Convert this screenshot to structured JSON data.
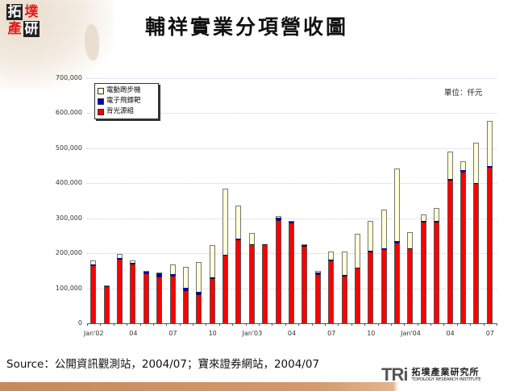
{
  "header": {
    "logo_chars": [
      "拓",
      "墣",
      "產",
      "研"
    ],
    "title": "輔祥實業分項營收圖"
  },
  "chart_data": {
    "type": "bar",
    "stacked": true,
    "title": "輔祥實業分項營收圖",
    "unit_label": "單位：仟元",
    "xlabel": "",
    "ylabel": "",
    "ylim": [
      0,
      700000
    ],
    "y_ticks": [
      "0",
      "100,000",
      "200,000",
      "300,000",
      "400,000",
      "500,000",
      "600,000",
      "700,000"
    ],
    "grid": true,
    "legend_position": "top-left",
    "x_tick_labels": [
      {
        "index": 0,
        "label": "Jan'02"
      },
      {
        "index": 3,
        "label": "04"
      },
      {
        "index": 6,
        "label": "07"
      },
      {
        "index": 9,
        "label": "10"
      },
      {
        "index": 12,
        "label": "Jan'03"
      },
      {
        "index": 15,
        "label": "04"
      },
      {
        "index": 18,
        "label": "07"
      },
      {
        "index": 21,
        "label": "10"
      },
      {
        "index": 24,
        "label": "Jan'04"
      },
      {
        "index": 27,
        "label": "04"
      },
      {
        "index": 30,
        "label": "07"
      }
    ],
    "categories": [
      "2002/01",
      "2002/02",
      "2002/03",
      "2002/04",
      "2002/05",
      "2002/06",
      "2002/07",
      "2002/08",
      "2002/09",
      "2002/10",
      "2002/11",
      "2002/12",
      "2003/01",
      "2003/02",
      "2003/03",
      "2003/04",
      "2003/05",
      "2003/06",
      "2003/07",
      "2003/08",
      "2003/09",
      "2003/10",
      "2003/11",
      "2003/12",
      "2004/01",
      "2004/02",
      "2004/03",
      "2004/04",
      "2004/05",
      "2004/06",
      "2004/07"
    ],
    "series": [
      {
        "name": "背光源組",
        "color": "#ff0000",
        "values": [
          165000,
          105000,
          185000,
          170000,
          142000,
          134000,
          137000,
          94000,
          84000,
          130000,
          195000,
          240000,
          225000,
          225000,
          295000,
          288000,
          220000,
          141000,
          180000,
          135000,
          158000,
          205000,
          211000,
          230000,
          213000,
          290000,
          290000,
          410000,
          434000,
          400000,
          447000
        ]
      },
      {
        "name": "電子飛鏢靶",
        "color": "#0000cc",
        "values": [
          2000,
          2000,
          2000,
          2000,
          5000,
          9000,
          4000,
          7000,
          5000,
          2000,
          1000,
          2000,
          1000,
          0,
          6000,
          1000,
          4000,
          4000,
          3000,
          4000,
          2000,
          2000,
          2000,
          4000,
          1000,
          2000,
          2000,
          2000,
          3000,
          1000,
          2000
        ]
      },
      {
        "name": "電動跑步機",
        "color": "#ffffd8",
        "values": [
          12000,
          1000,
          11000,
          8000,
          2000,
          2000,
          26000,
          61000,
          86000,
          92000,
          189000,
          94000,
          33000,
          0,
          5000,
          1000,
          2000,
          5000,
          21000,
          66000,
          96000,
          86000,
          111000,
          208000,
          46000,
          20000,
          38000,
          78000,
          26000,
          114000,
          129000
        ]
      }
    ]
  },
  "legend": {
    "items": [
      {
        "label": "電動跑步機",
        "color": "#ffffd8"
      },
      {
        "label": "電子飛鏢靶",
        "color": "#0000cc"
      },
      {
        "label": "背光源組",
        "color": "#ff0000"
      }
    ]
  },
  "footer": {
    "source": "Source：公開資訊觀測站，2004/07；寶來證券網站，2004/07",
    "org_mark": "TRi",
    "org_name_cn": "拓墣產業研究所",
    "org_name_en": "TOPOLOGY RESEARCH INSTITUTE"
  }
}
